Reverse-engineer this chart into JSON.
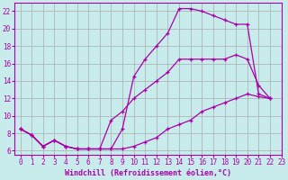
{
  "xlabel": "Windchill (Refroidissement éolien,°C)",
  "bg_color": "#c8ecec",
  "line_color": "#aa00aa",
  "grid_color": "#aaaaaa",
  "xlim": [
    -0.5,
    23
  ],
  "ylim": [
    5.5,
    23
  ],
  "xticks": [
    0,
    1,
    2,
    3,
    4,
    5,
    6,
    7,
    8,
    9,
    10,
    11,
    12,
    13,
    14,
    15,
    16,
    17,
    18,
    19,
    20,
    21,
    22,
    23
  ],
  "yticks": [
    6,
    8,
    10,
    12,
    14,
    16,
    18,
    20,
    22
  ],
  "line1_x": [
    0,
    1,
    2,
    3,
    4,
    5,
    6,
    7,
    8,
    9,
    10,
    11,
    12,
    13,
    14,
    15,
    16,
    17,
    18,
    19,
    20,
    21,
    22
  ],
  "line1_y": [
    8.5,
    7.8,
    6.5,
    7.2,
    6.5,
    6.2,
    6.2,
    6.2,
    6.2,
    6.2,
    6.5,
    7.0,
    7.5,
    8.5,
    9.0,
    9.5,
    10.5,
    11.0,
    11.5,
    12.0,
    12.5,
    12.2,
    12.0
  ],
  "line2_x": [
    0,
    1,
    2,
    3,
    4,
    5,
    6,
    7,
    8,
    9,
    10,
    11,
    12,
    13,
    14,
    15,
    16,
    17,
    18,
    19,
    20,
    21,
    22
  ],
  "line2_y": [
    8.5,
    7.8,
    6.5,
    7.2,
    6.5,
    6.2,
    6.2,
    6.2,
    6.2,
    8.5,
    14.5,
    16.5,
    18.0,
    19.5,
    22.3,
    22.3,
    22.0,
    21.5,
    21.0,
    20.5,
    20.5,
    12.5,
    12.0
  ],
  "line3_x": [
    0,
    1,
    2,
    3,
    4,
    5,
    6,
    7,
    8,
    9,
    10,
    11,
    12,
    13,
    14,
    15,
    16,
    17,
    18,
    19,
    20,
    21,
    22
  ],
  "line3_y": [
    8.5,
    7.8,
    6.5,
    7.2,
    6.5,
    6.2,
    6.2,
    6.2,
    9.5,
    10.5,
    12.0,
    13.0,
    14.0,
    15.0,
    16.5,
    16.5,
    16.5,
    16.5,
    16.5,
    17.0,
    16.5,
    13.5,
    12.0
  ]
}
